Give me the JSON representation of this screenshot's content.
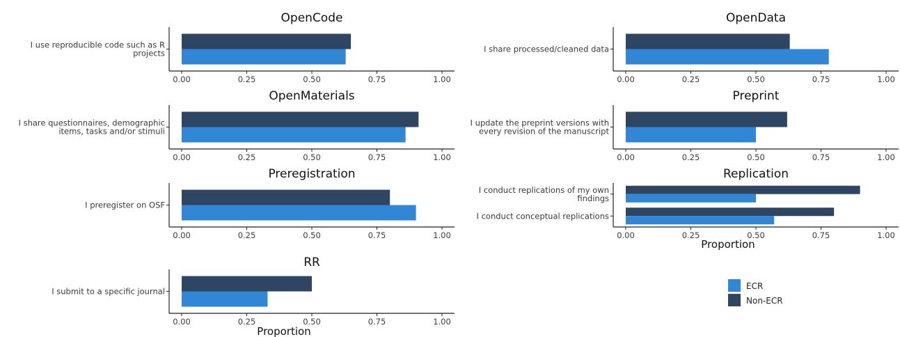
{
  "colors": {
    "ecr": "#3186d6",
    "non_ecr": "#2e4662",
    "axis": "#222222"
  },
  "legend": {
    "position": "bottom-right",
    "items": [
      {
        "label": "ECR",
        "color": "#3186d6"
      },
      {
        "label": "Non-ECR",
        "color": "#2e4662"
      }
    ]
  },
  "chart_data": [
    {
      "type": "bar",
      "orientation": "horizontal",
      "title": "OpenCode",
      "categories": [
        [
          "I use reproducible code such as R",
          "projects"
        ]
      ],
      "series": [
        {
          "name": "ECR",
          "values": [
            0.63
          ]
        },
        {
          "name": "Non-ECR",
          "values": [
            0.65
          ]
        }
      ],
      "xlim": [
        0,
        1
      ],
      "xticks": [
        "0.00",
        "0.25",
        "0.50",
        "0.75",
        "1.00"
      ],
      "xlabel": ""
    },
    {
      "type": "bar",
      "orientation": "horizontal",
      "title": "OpenData",
      "categories": [
        [
          "I share processed/cleaned data"
        ]
      ],
      "series": [
        {
          "name": "ECR",
          "values": [
            0.78
          ]
        },
        {
          "name": "Non-ECR",
          "values": [
            0.63
          ]
        }
      ],
      "xlim": [
        0,
        1
      ],
      "xticks": [
        "0.00",
        "0.25",
        "0.50",
        "0.75",
        "1.00"
      ],
      "xlabel": ""
    },
    {
      "type": "bar",
      "orientation": "horizontal",
      "title": "OpenMaterials",
      "categories": [
        [
          "I share questionnaires, demographic",
          "items, tasks and/or stimuli"
        ]
      ],
      "series": [
        {
          "name": "ECR",
          "values": [
            0.86
          ]
        },
        {
          "name": "Non-ECR",
          "values": [
            0.91
          ]
        }
      ],
      "xlim": [
        0,
        1
      ],
      "xticks": [
        "0.00",
        "0.25",
        "0.50",
        "0.75",
        "1.00"
      ],
      "xlabel": ""
    },
    {
      "type": "bar",
      "orientation": "horizontal",
      "title": "Preprint",
      "categories": [
        [
          "I update the preprint versions with",
          "every revision of the manuscript"
        ]
      ],
      "series": [
        {
          "name": "ECR",
          "values": [
            0.5
          ]
        },
        {
          "name": "Non-ECR",
          "values": [
            0.62
          ]
        }
      ],
      "xlim": [
        0,
        1
      ],
      "xticks": [
        "0.00",
        "0.25",
        "0.50",
        "0.75",
        "1.00"
      ],
      "xlabel": ""
    },
    {
      "type": "bar",
      "orientation": "horizontal",
      "title": "Preregistration",
      "categories": [
        [
          "I preregister on OSF"
        ]
      ],
      "series": [
        {
          "name": "ECR",
          "values": [
            0.9
          ]
        },
        {
          "name": "Non-ECR",
          "values": [
            0.8
          ]
        }
      ],
      "xlim": [
        0,
        1
      ],
      "xticks": [
        "0.00",
        "0.25",
        "0.50",
        "0.75",
        "1.00"
      ],
      "xlabel": ""
    },
    {
      "type": "bar",
      "orientation": "horizontal",
      "title": "Replication",
      "categories": [
        [
          "I conduct replications of my own",
          "findings"
        ],
        [
          "I conduct conceptual replications"
        ]
      ],
      "series": [
        {
          "name": "ECR",
          "values": [
            0.5,
            0.57
          ]
        },
        {
          "name": "Non-ECR",
          "values": [
            0.9,
            0.8
          ]
        }
      ],
      "xlim": [
        0,
        1
      ],
      "xticks": [
        "0.00",
        "0.25",
        "0.50",
        "0.75",
        "1.00"
      ],
      "xlabel": "Proportion"
    },
    {
      "type": "bar",
      "orientation": "horizontal",
      "title": "RR",
      "categories": [
        [
          "I submit to a specific journal"
        ]
      ],
      "series": [
        {
          "name": "ECR",
          "values": [
            0.33
          ]
        },
        {
          "name": "Non-ECR",
          "values": [
            0.5
          ]
        }
      ],
      "xlim": [
        0,
        1
      ],
      "xticks": [
        "0.00",
        "0.25",
        "0.50",
        "0.75",
        "1.00"
      ],
      "xlabel": "Proportion"
    }
  ]
}
